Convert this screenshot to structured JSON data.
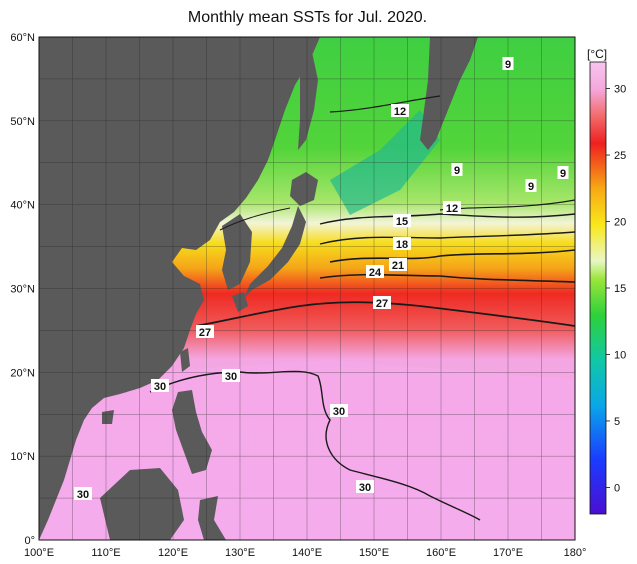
{
  "title": "Monthly mean SSTs for Jul. 2020.",
  "lat_labels": [
    "0°",
    "10°N",
    "20°N",
    "30°N",
    "40°N",
    "50°N",
    "60°N"
  ],
  "lon_labels": [
    "100°E",
    "110°E",
    "120°E",
    "130°E",
    "140°E",
    "150°E",
    "160°E",
    "170°E",
    "180°"
  ],
  "colorbar": {
    "unit": "[°C]",
    "ticks": [
      "0",
      "5",
      "10",
      "15",
      "20",
      "25",
      "30"
    ],
    "range": [
      -2,
      32
    ]
  },
  "contour_labels": [
    "9",
    "12",
    "9",
    "9",
    "9",
    "12",
    "15",
    "18",
    "21",
    "24",
    "27",
    "27",
    "30",
    "30",
    "30",
    "30",
    "30"
  ],
  "colors": {
    "land": "#5a5a5a",
    "tropical": "#f3a2e8",
    "hot": "#ee1c1c",
    "warm": "#f5c61a",
    "temperate": "#b8e85a",
    "cool": "#39d33c",
    "cold": "#1fbf88"
  }
}
